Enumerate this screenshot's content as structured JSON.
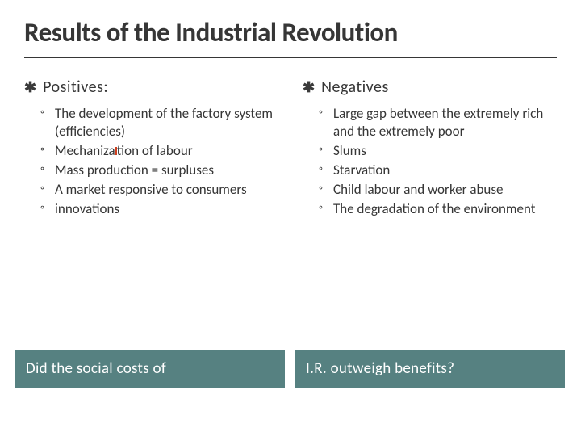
{
  "title": "Results of the Industrial Revolution",
  "colors": {
    "title_text": "#363636",
    "body_text": "#363636",
    "bar_bg": "#568181",
    "bar_text": "#ffffff",
    "cursor_border": "#d04020",
    "underline": "#363636"
  },
  "left": {
    "header": "Positives:",
    "items": [
      "The development of the factory system (efficiencies)",
      "Mechanization of labour",
      "Mass production = surpluses",
      "A market responsive to consumers",
      "innovations"
    ]
  },
  "right": {
    "header": "Negatives",
    "items": [
      "Large gap between the extremely rich and the extremely poor",
      "Slums",
      "Starvation",
      "Child labour and worker abuse",
      "The degradation of the environment"
    ]
  },
  "bottom": {
    "left_bar": "Did the social costs of",
    "right_bar": "I.R. outweigh benefits?"
  },
  "cursor_in_left_item_index": 1
}
